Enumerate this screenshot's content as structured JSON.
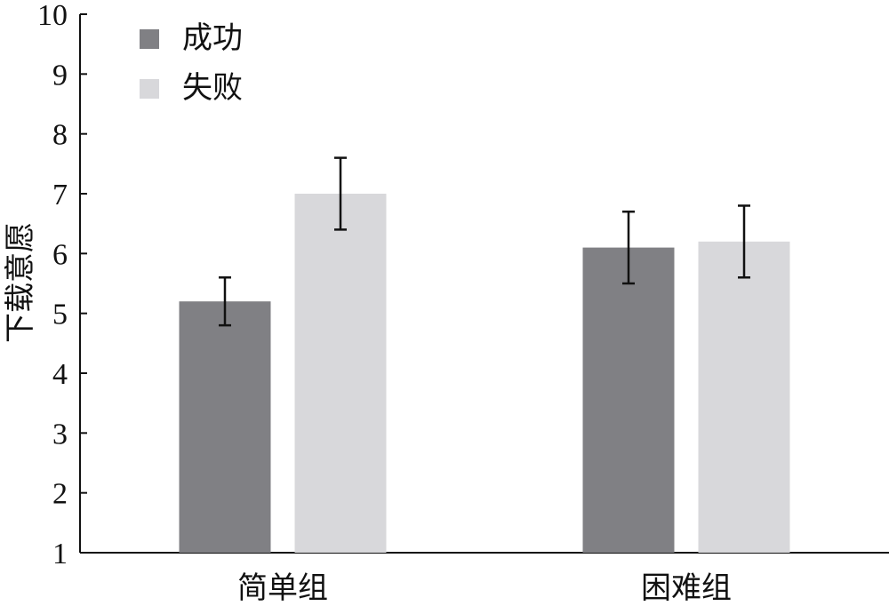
{
  "chart_data": {
    "type": "bar",
    "title": "",
    "xlabel": "",
    "ylabel": "下载意愿",
    "ylim": [
      1,
      10
    ],
    "yticks": [
      1,
      2,
      3,
      4,
      5,
      6,
      7,
      8,
      9,
      10
    ],
    "categories": [
      "简单组",
      "困难组"
    ],
    "series": [
      {
        "name": "成功",
        "color": "#808084",
        "values": [
          5.2,
          6.1
        ],
        "error": [
          0.4,
          0.6
        ]
      },
      {
        "name": "失败",
        "color": "#d8d8db",
        "values": [
          7.0,
          6.2
        ],
        "error": [
          0.6,
          0.6
        ]
      }
    ],
    "grid": false,
    "legend_position": "top-left"
  }
}
